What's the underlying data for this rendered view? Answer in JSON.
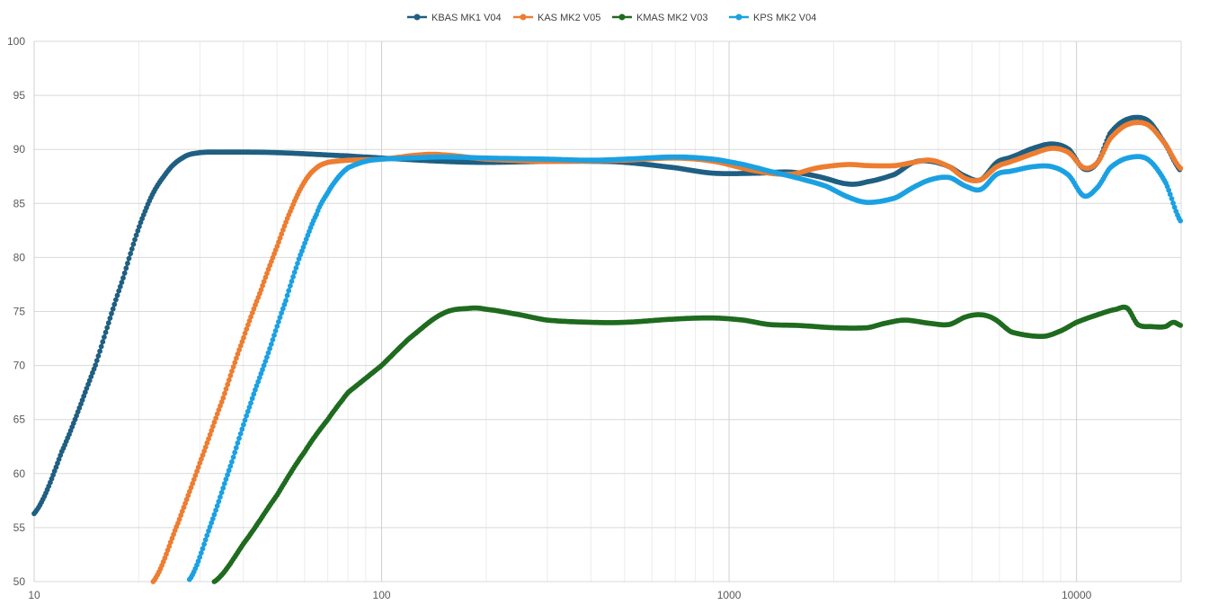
{
  "chart_data": {
    "type": "line",
    "title": "",
    "xlabel": "",
    "ylabel": "",
    "x_scale": "log",
    "xlim": [
      10,
      20000
    ],
    "ylim": [
      50,
      100
    ],
    "x_ticks": [
      10,
      100,
      1000,
      10000
    ],
    "x_tick_labels": [
      "10",
      "100",
      "1000",
      "10000"
    ],
    "y_ticks": [
      50,
      55,
      60,
      65,
      70,
      75,
      80,
      85,
      90,
      95,
      100
    ],
    "y_tick_labels": [
      "50",
      "55",
      "60",
      "65",
      "70",
      "75",
      "80",
      "85",
      "90",
      "95",
      "100"
    ],
    "grid": "major and minor",
    "legend_position": "top-center",
    "markers": "circle",
    "series": [
      {
        "name": "KBAS MK1 V04",
        "color": "#1F5F82",
        "points": [
          [
            10,
            56.3
          ],
          [
            12,
            62
          ],
          [
            15,
            70
          ],
          [
            18,
            78
          ],
          [
            21,
            84.5
          ],
          [
            24,
            87.8
          ],
          [
            27,
            89.3
          ],
          [
            30,
            89.7
          ],
          [
            35,
            89.75
          ],
          [
            50,
            89.7
          ],
          [
            80,
            89.4
          ],
          [
            100,
            89.2
          ],
          [
            150,
            88.9
          ],
          [
            200,
            88.8
          ],
          [
            300,
            88.9
          ],
          [
            400,
            88.9
          ],
          [
            500,
            88.8
          ],
          [
            700,
            88.3
          ],
          [
            900,
            87.8
          ],
          [
            1200,
            87.8
          ],
          [
            1500,
            87.9
          ],
          [
            1800,
            87.5
          ],
          [
            2200,
            86.8
          ],
          [
            2500,
            87.0
          ],
          [
            3000,
            87.7
          ],
          [
            3400,
            88.8
          ],
          [
            3800,
            88.9
          ],
          [
            4300,
            88.4
          ],
          [
            4800,
            87.5
          ],
          [
            5300,
            87.2
          ],
          [
            5900,
            88.8
          ],
          [
            6500,
            89.3
          ],
          [
            7500,
            90.1
          ],
          [
            8500,
            90.5
          ],
          [
            9500,
            90.0
          ],
          [
            10500,
            88.2
          ],
          [
            11500,
            88.8
          ],
          [
            12500,
            91.5
          ],
          [
            14000,
            92.8
          ],
          [
            16000,
            92.7
          ],
          [
            18000,
            90.5
          ],
          [
            20000,
            88.0
          ]
        ]
      },
      {
        "name": "KAS MK2 V05",
        "color": "#ED7D31",
        "points": [
          [
            22,
            50.0
          ],
          [
            26,
            55.5
          ],
          [
            30,
            61
          ],
          [
            35,
            67
          ],
          [
            40,
            72.5
          ],
          [
            45,
            77
          ],
          [
            50,
            81
          ],
          [
            55,
            84.5
          ],
          [
            60,
            87
          ],
          [
            65,
            88.3
          ],
          [
            70,
            88.8
          ],
          [
            80,
            89.0
          ],
          [
            100,
            89.1
          ],
          [
            130,
            89.5
          ],
          [
            150,
            89.5
          ],
          [
            200,
            89.1
          ],
          [
            300,
            88.9
          ],
          [
            500,
            89.0
          ],
          [
            700,
            89.2
          ],
          [
            900,
            88.9
          ],
          [
            1200,
            88.0
          ],
          [
            1500,
            87.7
          ],
          [
            1800,
            88.3
          ],
          [
            2200,
            88.6
          ],
          [
            2500,
            88.5
          ],
          [
            3000,
            88.5
          ],
          [
            3400,
            88.8
          ],
          [
            3800,
            89.0
          ],
          [
            4300,
            88.4
          ],
          [
            4800,
            87.3
          ],
          [
            5300,
            87.2
          ],
          [
            5900,
            88.4
          ],
          [
            6500,
            88.9
          ],
          [
            7500,
            89.6
          ],
          [
            8500,
            90.1
          ],
          [
            9500,
            89.7
          ],
          [
            10500,
            88.3
          ],
          [
            11500,
            88.8
          ],
          [
            12500,
            91.0
          ],
          [
            14000,
            92.3
          ],
          [
            16000,
            92.3
          ],
          [
            18000,
            90.5
          ],
          [
            20000,
            88.2
          ]
        ]
      },
      {
        "name": "KMAS MK2 V03",
        "color": "#1F6B1F",
        "points": [
          [
            33,
            50.0
          ],
          [
            40,
            53.5
          ],
          [
            50,
            58
          ],
          [
            60,
            62
          ],
          [
            70,
            65
          ],
          [
            80,
            67.5
          ],
          [
            100,
            70.0
          ],
          [
            120,
            72.5
          ],
          [
            150,
            74.8
          ],
          [
            180,
            75.3
          ],
          [
            200,
            75.2
          ],
          [
            250,
            74.7
          ],
          [
            300,
            74.2
          ],
          [
            400,
            74.0
          ],
          [
            500,
            74.0
          ],
          [
            700,
            74.3
          ],
          [
            900,
            74.4
          ],
          [
            1100,
            74.2
          ],
          [
            1300,
            73.8
          ],
          [
            1600,
            73.7
          ],
          [
            2000,
            73.5
          ],
          [
            2500,
            73.5
          ],
          [
            2800,
            73.9
          ],
          [
            3200,
            74.2
          ],
          [
            3800,
            73.9
          ],
          [
            4300,
            73.8
          ],
          [
            4800,
            74.5
          ],
          [
            5300,
            74.7
          ],
          [
            5800,
            74.3
          ],
          [
            6500,
            73.1
          ],
          [
            8000,
            72.7
          ],
          [
            9000,
            73.2
          ],
          [
            10000,
            74.0
          ],
          [
            11500,
            74.7
          ],
          [
            13000,
            75.2
          ],
          [
            14000,
            75.3
          ],
          [
            15000,
            73.8
          ],
          [
            16500,
            73.6
          ],
          [
            18000,
            73.6
          ],
          [
            19000,
            74.0
          ],
          [
            20000,
            73.7
          ]
        ]
      },
      {
        "name": "KPS MK2 V04",
        "color": "#1BA1E2",
        "points": [
          [
            28,
            50.2
          ],
          [
            32,
            55
          ],
          [
            37,
            61
          ],
          [
            42,
            66.5
          ],
          [
            47,
            71
          ],
          [
            53,
            76
          ],
          [
            58,
            80
          ],
          [
            65,
            84
          ],
          [
            70,
            86
          ],
          [
            75,
            87.4
          ],
          [
            80,
            88.3
          ],
          [
            90,
            88.9
          ],
          [
            100,
            89.1
          ],
          [
            120,
            89.2
          ],
          [
            150,
            89.3
          ],
          [
            200,
            89.2
          ],
          [
            300,
            89.1
          ],
          [
            400,
            89.0
          ],
          [
            500,
            89.1
          ],
          [
            700,
            89.3
          ],
          [
            900,
            89.1
          ],
          [
            1100,
            88.6
          ],
          [
            1300,
            88.0
          ],
          [
            1600,
            87.3
          ],
          [
            1900,
            86.6
          ],
          [
            2200,
            85.6
          ],
          [
            2500,
            85.1
          ],
          [
            3000,
            85.5
          ],
          [
            3400,
            86.5
          ],
          [
            3800,
            87.2
          ],
          [
            4300,
            87.4
          ],
          [
            4800,
            86.6
          ],
          [
            5300,
            86.3
          ],
          [
            5900,
            87.7
          ],
          [
            6500,
            88.0
          ],
          [
            7500,
            88.4
          ],
          [
            8500,
            88.4
          ],
          [
            9500,
            87.6
          ],
          [
            10500,
            85.7
          ],
          [
            11500,
            86.5
          ],
          [
            12500,
            88.3
          ],
          [
            14000,
            89.2
          ],
          [
            16000,
            89.1
          ],
          [
            18000,
            87.0
          ],
          [
            20000,
            83.3
          ]
        ]
      }
    ]
  }
}
